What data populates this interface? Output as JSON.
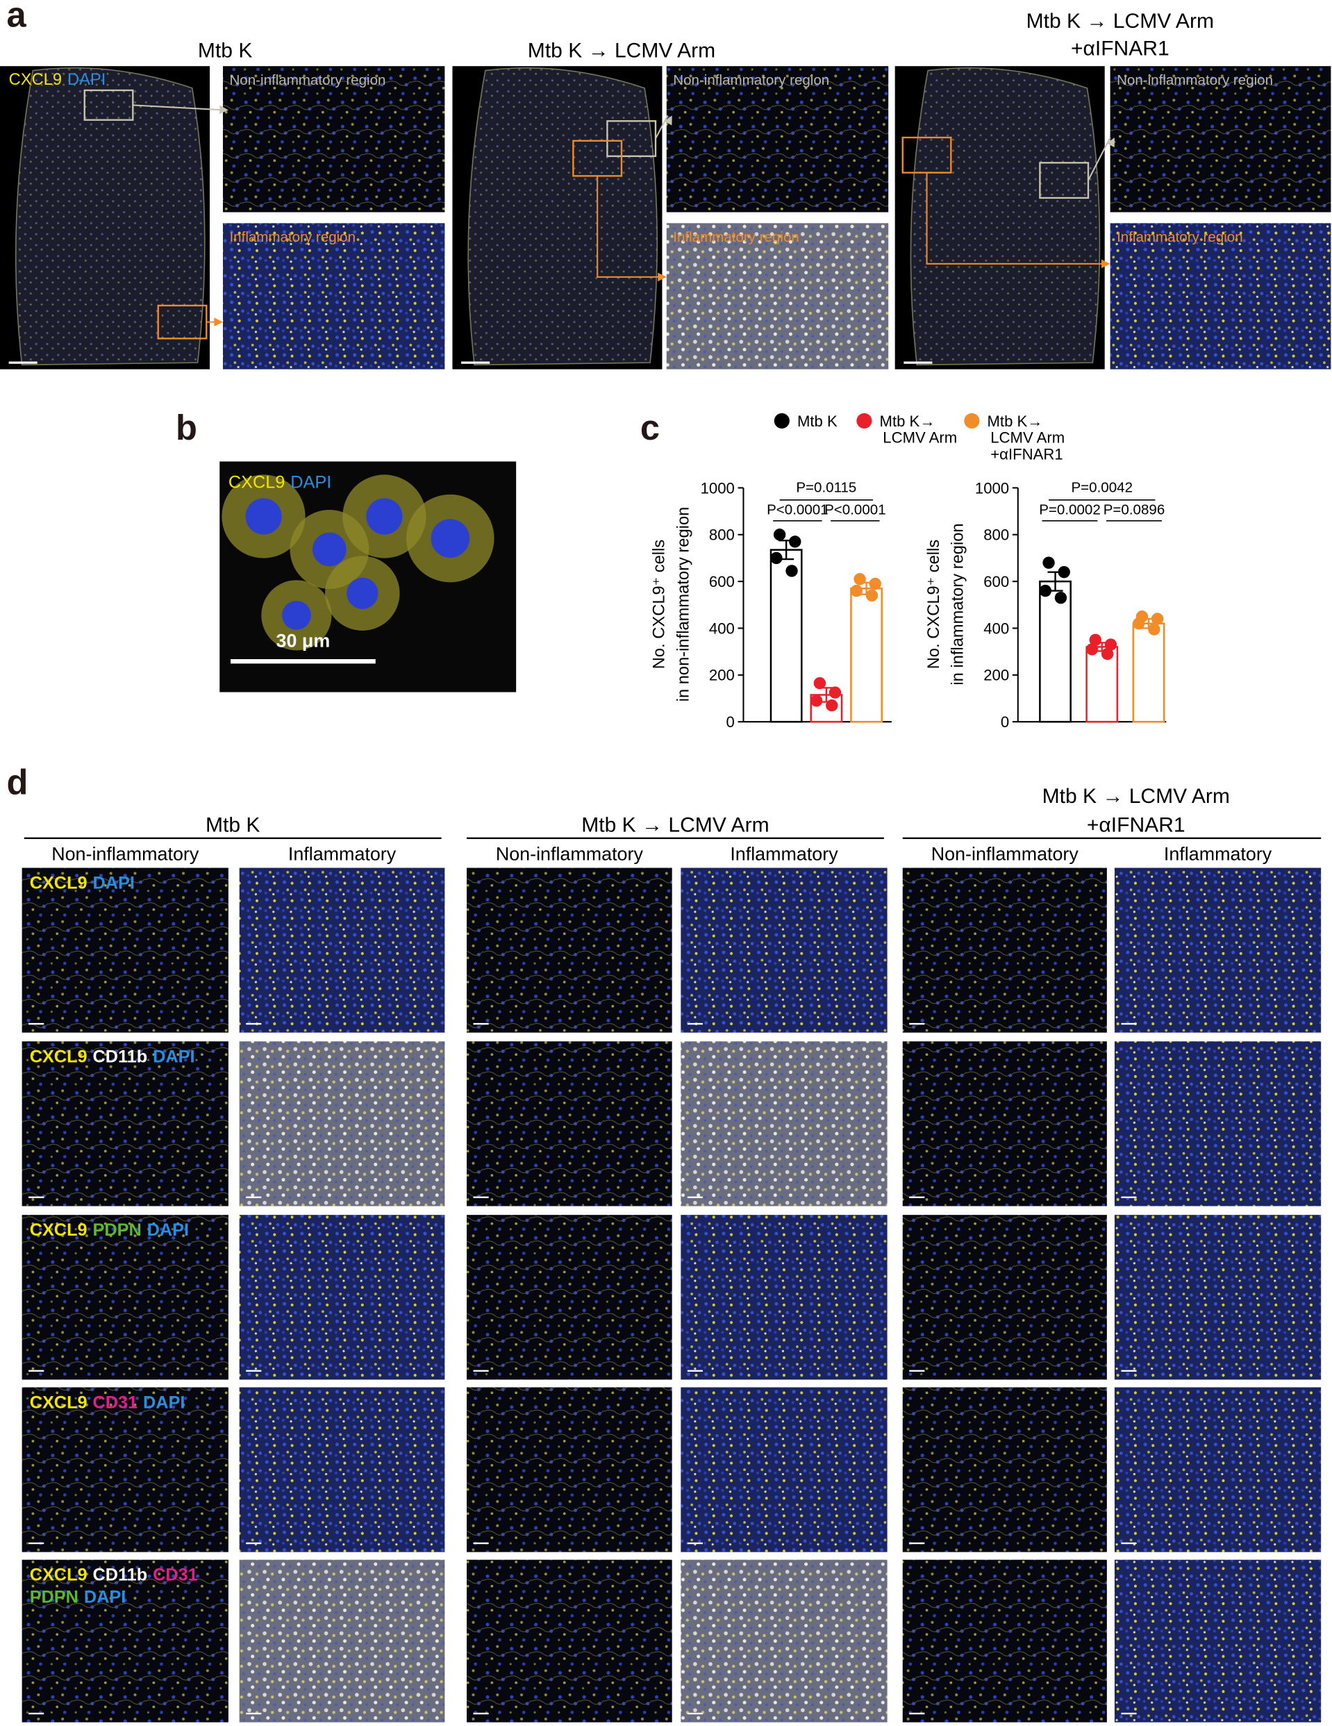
{
  "panel_a": {
    "label": "a",
    "stain": [
      {
        "text": "CXCL9",
        "color": "#f2e500"
      },
      {
        "text": "DAPI",
        "color": "#2a8ee0"
      }
    ],
    "groups": [
      {
        "title": [
          "Mtb K"
        ],
        "insets": [
          "Non-inflammatory region",
          "Inflammatory region"
        ]
      },
      {
        "title": [
          "Mtb K → LCMV Arm"
        ],
        "insets": [
          "Non-inflammatory region",
          "Inflammatory region"
        ]
      },
      {
        "title": [
          "Mtb K → LCMV Arm",
          "+αIFNAR1"
        ],
        "insets": [
          "Non-inflammatory region",
          "Inflammatory region"
        ]
      }
    ]
  },
  "panel_b": {
    "label": "b",
    "stain": [
      {
        "text": "CXCL9",
        "color": "#f2e500"
      },
      {
        "text": "DAPI",
        "color": "#2a8ee0"
      }
    ],
    "scale_bar": "30 μm"
  },
  "panel_c": {
    "label": "c",
    "legend": [
      {
        "lines": [
          "Mtb K"
        ],
        "color": "#000000"
      },
      {
        "lines": [
          "Mtb K→",
          "LCMV Arm"
        ],
        "color": "#e8202a"
      },
      {
        "lines": [
          "Mtb K→",
          "LCMV Arm",
          "+αIFNAR1"
        ],
        "color": "#f28c28"
      }
    ]
  },
  "chart_data": [
    {
      "type": "bar",
      "ylabel": [
        "No. CXCL9⁺ cells",
        "in non-inflammatory region"
      ],
      "categories": [
        null,
        null,
        null
      ],
      "colors": [
        "#000000",
        "#e8202a",
        "#f28c28"
      ],
      "values": [
        735,
        115,
        570
      ],
      "errors": [
        40,
        30,
        25
      ],
      "points": [
        [
          800,
          770,
          700,
          645
        ],
        [
          165,
          125,
          90,
          70
        ],
        [
          610,
          590,
          560,
          540
        ]
      ],
      "ylim": [
        0,
        1000
      ],
      "yticks": [
        0,
        200,
        400,
        600,
        800,
        1000
      ],
      "annotations": [
        "P=0.0115",
        "P<0.0001",
        "P<0.0001"
      ]
    },
    {
      "type": "bar",
      "ylabel": [
        "No. CXCL9⁺ cells",
        "in inflammatory region"
      ],
      "categories": [
        null,
        null,
        null
      ],
      "colors": [
        "#000000",
        "#e8202a",
        "#f28c28"
      ],
      "values": [
        600,
        320,
        420
      ],
      "errors": [
        40,
        18,
        20
      ],
      "points": [
        [
          680,
          640,
          560,
          530
        ],
        [
          350,
          330,
          310,
          290
        ],
        [
          450,
          440,
          420,
          395
        ]
      ],
      "ylim": [
        0,
        1000
      ],
      "yticks": [
        0,
        200,
        400,
        600,
        800,
        1000
      ],
      "annotations": [
        "P=0.0042",
        "P=0.0002",
        "P=0.0896"
      ]
    }
  ],
  "panel_d": {
    "label": "d",
    "groups": [
      {
        "title": [
          "Mtb K"
        ],
        "columns": [
          "Non-inflammatory",
          "Inflammatory"
        ]
      },
      {
        "title": [
          "Mtb K → LCMV Arm"
        ],
        "columns": [
          "Non-inflammatory",
          "Inflammatory"
        ]
      },
      {
        "title": [
          "Mtb K → LCMV Arm",
          "+αIFNAR1"
        ],
        "columns": [
          "Non-inflammatory",
          "Inflammatory"
        ]
      }
    ],
    "stains": [
      [
        [
          {
            "text": "CXCL9",
            "color": "#f2e500"
          },
          {
            "text": "DAPI",
            "color": "#2a8ee0"
          }
        ]
      ],
      [
        [
          {
            "text": "CXCL9",
            "color": "#f2e500"
          },
          {
            "text": "CD11b",
            "color": "#ffffff"
          },
          {
            "text": "DAPI",
            "color": "#2a8ee0"
          }
        ]
      ],
      [
        [
          {
            "text": "CXCL9",
            "color": "#f2e500"
          },
          {
            "text": "PDPN",
            "color": "#5cb82e"
          },
          {
            "text": "DAPI",
            "color": "#2a8ee0"
          }
        ]
      ],
      [
        [
          {
            "text": "CXCL9",
            "color": "#f2e500"
          },
          {
            "text": "CD31",
            "color": "#e0208a"
          },
          {
            "text": "DAPI",
            "color": "#2a8ee0"
          }
        ]
      ],
      [
        [
          {
            "text": "CXCL9",
            "color": "#f2e500"
          },
          {
            "text": "CD11b",
            "color": "#ffffff"
          },
          {
            "text": "CD31",
            "color": "#e0208a"
          }
        ],
        [
          {
            "text": "PDPN",
            "color": "#5cb82e"
          },
          {
            "text": "DAPI",
            "color": "#2a8ee0"
          }
        ]
      ]
    ]
  }
}
